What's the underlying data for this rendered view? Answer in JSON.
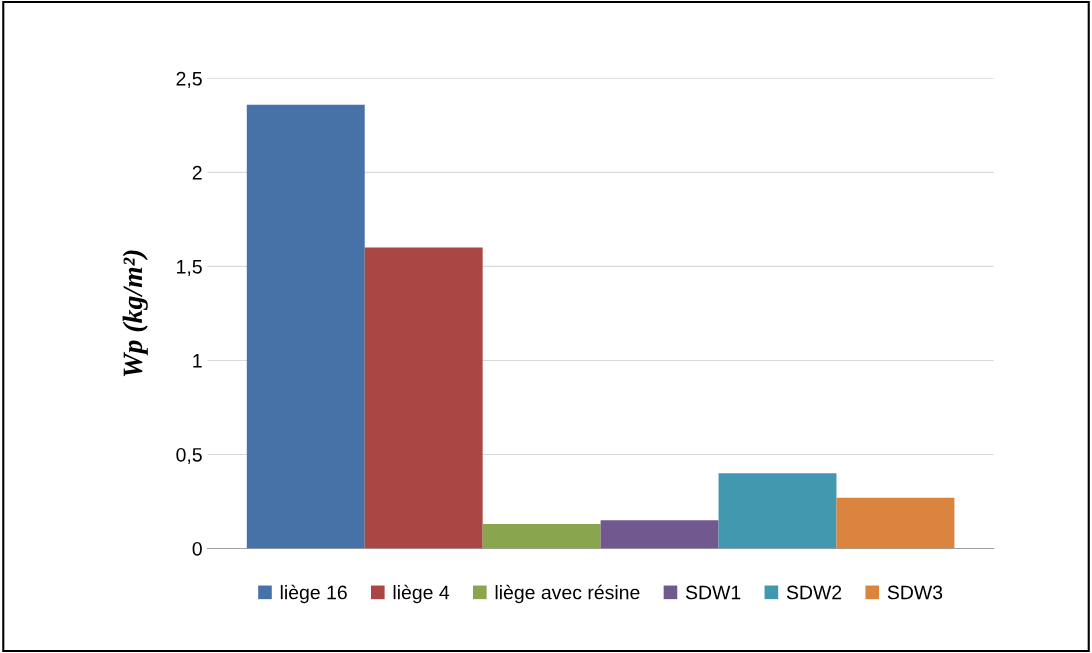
{
  "chart_data": {
    "type": "bar",
    "ylabel": "Wp (kg/m²)",
    "categories": [
      null
    ],
    "series": [
      {
        "name": "liège 16",
        "color": "#4672a8",
        "values": [
          2.36
        ]
      },
      {
        "name": "liège 4",
        "color": "#aa4643",
        "values": [
          1.6
        ]
      },
      {
        "name": "liège avec résine",
        "color": "#89a54e",
        "values": [
          0.13
        ]
      },
      {
        "name": "SDW1",
        "color": "#71588f",
        "values": [
          0.15
        ]
      },
      {
        "name": "SDW2",
        "color": "#4198af",
        "values": [
          0.4
        ]
      },
      {
        "name": "SDW3",
        "color": "#db843d",
        "values": [
          0.27
        ]
      }
    ],
    "ylim": [
      0,
      2.5
    ],
    "yticks": [
      0,
      {
        "value": 0.5,
        "label": "0,5"
      },
      1,
      {
        "value": 1.5,
        "label": "1,5"
      },
      2,
      {
        "value": 2.5,
        "label": "2,5"
      }
    ],
    "grid": "y",
    "legend": "bottom",
    "tick_labels": "y"
  }
}
